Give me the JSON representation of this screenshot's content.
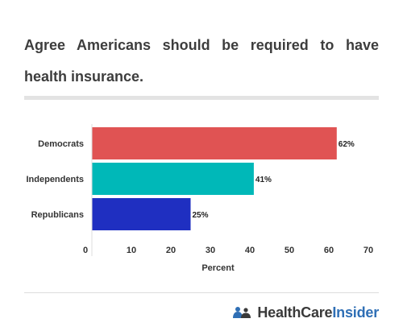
{
  "chart_data": {
    "type": "bar",
    "orientation": "horizontal",
    "title": "Agree Americans should be required to have health insurance.",
    "categories": [
      "Democrats",
      "Independents",
      "Republicans"
    ],
    "values": [
      62,
      41,
      25
    ],
    "value_labels": [
      "62%",
      "41%",
      "25%"
    ],
    "colors": [
      "#e05353",
      "#00b8b8",
      "#1f2fc1"
    ],
    "xlabel": "Percent",
    "ylabel": "",
    "xlim": [
      0,
      70
    ],
    "xticks": [
      0,
      10,
      20,
      30,
      40,
      50,
      60,
      70
    ],
    "grid": false,
    "legend": "none"
  },
  "brand": {
    "part1": "HealthCare",
    "part2": "Insider",
    "icon": "people-icon",
    "color_text": "#3a3a3a",
    "color_accent": "#2f6fb5"
  }
}
